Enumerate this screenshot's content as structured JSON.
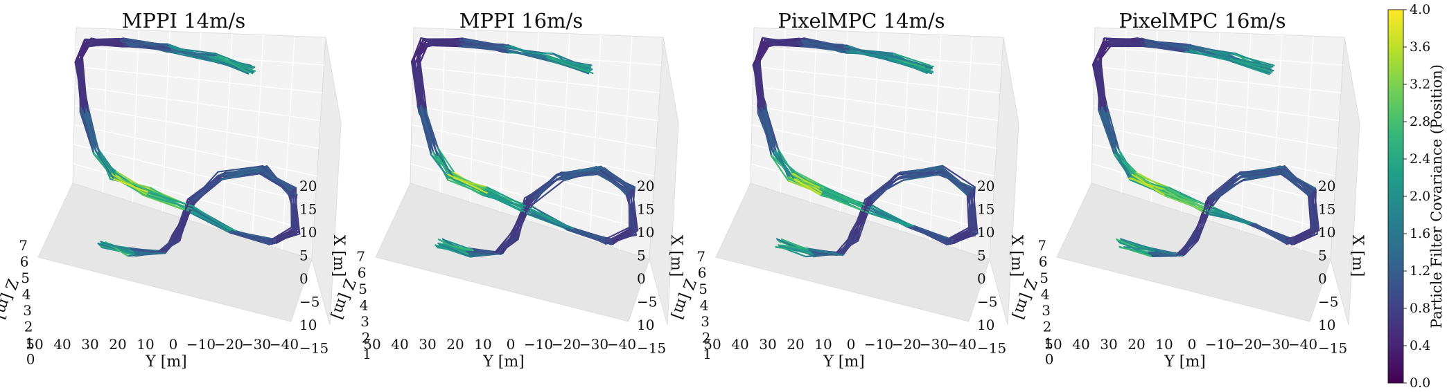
{
  "chart_data": [
    {
      "type": "line",
      "title": "MPPI  14m/s",
      "xlabel": "X [m]",
      "ylabel": "Y [m]",
      "zlabel": "Z [m]",
      "x_ticks": [
        "20",
        "15",
        "10",
        "5",
        "0",
        "−5",
        "10",
        "−15"
      ],
      "y_ticks": [
        "50",
        "40",
        "30",
        "20",
        "10",
        "0",
        "−10",
        "−20",
        "−30",
        "−40"
      ],
      "z_ticks": [
        "7",
        "6",
        "5",
        "4",
        "3",
        "2",
        "1",
        "0"
      ],
      "xlim": [
        -15,
        22
      ],
      "ylim": [
        -40,
        50
      ],
      "zlim": [
        0,
        7.5
      ]
    },
    {
      "type": "line",
      "title": "MPPI  16m/s",
      "xlabel": "X [m]",
      "ylabel": "Y [m]",
      "zlabel": "Z [m]",
      "x_ticks": [
        "20",
        "15",
        "10",
        "5",
        "0",
        "−5",
        "10",
        "−15"
      ],
      "y_ticks": [
        "50",
        "40",
        "30",
        "20",
        "10",
        "0",
        "−10",
        "−20",
        "−30",
        "−40"
      ],
      "z_ticks": [
        "7",
        "6",
        "5",
        "4",
        "3",
        "2",
        "1"
      ],
      "xlim": [
        -15,
        22
      ],
      "ylim": [
        -40,
        50
      ],
      "zlim": [
        1,
        7.5
      ]
    },
    {
      "type": "line",
      "title": "PixelMPC  14m/s",
      "xlabel": "X [m]",
      "ylabel": "Y [m]",
      "zlabel": "Z [m]",
      "x_ticks": [
        "20",
        "15",
        "10",
        "5",
        "0",
        "−5",
        "10",
        "−15"
      ],
      "y_ticks": [
        "50",
        "40",
        "30",
        "20",
        "10",
        "0",
        "−10",
        "−20",
        "−30",
        "−40"
      ],
      "z_ticks": [
        "7",
        "6",
        "5",
        "4",
        "3",
        "2",
        "1"
      ],
      "xlim": [
        -15,
        22
      ],
      "ylim": [
        -40,
        50
      ],
      "zlim": [
        1,
        7.5
      ]
    },
    {
      "type": "line",
      "title": "PixelMPC  16m/s",
      "xlabel": "X [m]",
      "ylabel": "Y [m]",
      "zlabel": "Z [m]",
      "x_ticks": [
        "20",
        "15",
        "10",
        "5",
        "0",
        "−5",
        "10",
        "−15"
      ],
      "y_ticks": [
        "50",
        "40",
        "30",
        "20",
        "10",
        "0",
        "−10",
        "−20",
        "−30",
        "−40"
      ],
      "z_ticks": [
        "7",
        "6",
        "5",
        "4",
        "3",
        "2",
        "1",
        "0"
      ],
      "xlim": [
        -15,
        22
      ],
      "ylim": [
        -40,
        50
      ],
      "zlim": [
        0,
        7.5
      ]
    }
  ],
  "colorbar": {
    "label": "Particle Filter Covariance (Position)",
    "ticks": [
      "4.0",
      "3.6",
      "3.2",
      "2.8",
      "2.4",
      "2.0",
      "1.6",
      "1.2",
      "0.8",
      "0.4",
      "0.0"
    ],
    "range": [
      0,
      4
    ],
    "colormap": "viridis",
    "colors": [
      "#440154",
      "#482878",
      "#3e4989",
      "#31688e",
      "#26828e",
      "#1f9e89",
      "#35b779",
      "#6ece58",
      "#b5de2b",
      "#fde725"
    ]
  }
}
